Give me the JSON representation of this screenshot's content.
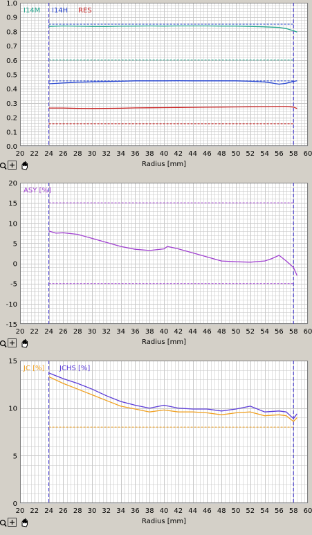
{
  "colors": {
    "panel_bg": "#d4d0c8",
    "plot_bg": "#ffffff",
    "grid": "#c8c8c8",
    "marker": "#3a2fd0",
    "i14m": "#20a58c",
    "i14h": "#1f3fcf",
    "res": "#c81e1e",
    "asy": "#a040d0",
    "jc": "#f0a020",
    "jchs": "#5a3ad8"
  },
  "toolbar_icons": [
    "magnifier-icon",
    "plus-icon",
    "hand-icon"
  ],
  "chart_data": [
    {
      "type": "line",
      "xlabel": "Radius [mm]",
      "ylabel": "",
      "xlim": [
        20,
        60
      ],
      "ylim": [
        0,
        1.0
      ],
      "x_ticks": [
        20,
        22,
        24,
        26,
        28,
        30,
        32,
        34,
        36,
        38,
        40,
        42,
        44,
        46,
        48,
        50,
        52,
        54,
        56,
        58,
        60
      ],
      "y_ticks": [
        "0.0",
        "0.1",
        "0.2",
        "0.3",
        "0.4",
        "0.5",
        "0.6",
        "0.7",
        "0.8",
        "0.9",
        "1.0"
      ],
      "grid": true,
      "legend_position": "top-left",
      "vertical_markers": [
        24,
        58
      ],
      "series": [
        {
          "name": "I14M",
          "color": "#20a58c",
          "x": [
            24,
            26,
            28,
            30,
            32,
            34,
            36,
            38,
            40,
            42,
            44,
            46,
            48,
            50,
            52,
            54,
            56,
            57,
            58,
            58.5
          ],
          "y": [
            0.835,
            0.838,
            0.836,
            0.835,
            0.834,
            0.836,
            0.837,
            0.838,
            0.837,
            0.838,
            0.838,
            0.838,
            0.837,
            0.837,
            0.835,
            0.832,
            0.828,
            0.82,
            0.805,
            0.795
          ]
        },
        {
          "name": "I14H",
          "color": "#1f3fcf",
          "x": [
            24,
            26,
            28,
            30,
            32,
            34,
            36,
            38,
            40,
            42,
            44,
            46,
            48,
            50,
            52,
            54,
            55,
            56,
            57,
            58,
            58.5
          ],
          "y": [
            0.435,
            0.44,
            0.445,
            0.448,
            0.45,
            0.452,
            0.455,
            0.455,
            0.455,
            0.456,
            0.455,
            0.455,
            0.455,
            0.455,
            0.452,
            0.447,
            0.44,
            0.432,
            0.438,
            0.45,
            0.456
          ]
        },
        {
          "name": "RES",
          "color": "#c81e1e",
          "x": [
            24,
            26,
            28,
            30,
            32,
            34,
            36,
            38,
            40,
            42,
            44,
            46,
            48,
            50,
            52,
            54,
            56,
            57,
            58,
            58.5
          ],
          "y": [
            0.265,
            0.265,
            0.263,
            0.262,
            0.263,
            0.264,
            0.266,
            0.267,
            0.268,
            0.269,
            0.27,
            0.271,
            0.272,
            0.273,
            0.274,
            0.275,
            0.276,
            0.276,
            0.272,
            0.262
          ]
        }
      ],
      "dashed_lines": [
        {
          "y": 0.85,
          "color": "#1f3fcf"
        },
        {
          "y": 0.6,
          "color": "#20a58c"
        },
        {
          "y": 0.455,
          "color": "#1f3fcf"
        },
        {
          "y": 0.155,
          "color": "#c81e1e"
        }
      ]
    },
    {
      "type": "line",
      "xlabel": "Radius [mm]",
      "ylabel": "",
      "xlim": [
        20,
        60
      ],
      "ylim": [
        -15,
        20
      ],
      "x_ticks": [
        20,
        22,
        24,
        26,
        28,
        30,
        32,
        34,
        36,
        38,
        40,
        42,
        44,
        46,
        48,
        50,
        52,
        54,
        56,
        58,
        60
      ],
      "y_ticks": [
        "-15",
        "-10",
        "-5",
        "0",
        "5",
        "10",
        "15",
        "20"
      ],
      "grid": true,
      "legend_position": "top-left",
      "vertical_markers": [
        24,
        58
      ],
      "series": [
        {
          "name": "ASY [%]",
          "color": "#a040d0",
          "x": [
            24,
            25,
            26,
            28,
            30,
            32,
            34,
            36,
            38,
            40,
            40.5,
            42,
            44,
            46,
            48,
            50,
            52,
            54,
            55,
            56,
            57,
            58,
            58.5
          ],
          "y": [
            8.0,
            7.5,
            7.6,
            7.2,
            6.2,
            5.2,
            4.2,
            3.5,
            3.2,
            3.6,
            4.2,
            3.6,
            2.6,
            1.6,
            0.6,
            0.4,
            0.3,
            0.6,
            1.2,
            2.0,
            0.6,
            -1.0,
            -3.0
          ]
        }
      ],
      "dashed_lines": [
        {
          "y": 15,
          "color": "#a040d0"
        },
        {
          "y": -5,
          "color": "#a040d0"
        }
      ]
    },
    {
      "type": "line",
      "xlabel": "Radius [mm]",
      "ylabel": "",
      "xlim": [
        20,
        60
      ],
      "ylim": [
        0,
        15
      ],
      "x_ticks": [
        20,
        22,
        24,
        26,
        28,
        30,
        32,
        34,
        36,
        38,
        40,
        42,
        44,
        46,
        48,
        50,
        52,
        54,
        56,
        58,
        60
      ],
      "y_ticks": [
        "0",
        "5",
        "10",
        "15"
      ],
      "grid": true,
      "legend_position": "top-left",
      "vertical_markers": [
        24,
        58
      ],
      "series": [
        {
          "name": "JC [%]",
          "color": "#f0a020",
          "x": [
            24,
            26,
            28,
            30,
            32,
            34,
            36,
            38,
            40,
            42,
            44,
            46,
            48,
            50,
            52,
            54,
            56,
            57,
            58,
            58.5
          ],
          "y": [
            13.3,
            12.6,
            12.0,
            11.4,
            10.8,
            10.2,
            9.9,
            9.6,
            9.8,
            9.6,
            9.6,
            9.5,
            9.3,
            9.5,
            9.6,
            9.2,
            9.3,
            9.2,
            8.6,
            9.0
          ]
        },
        {
          "name": "JCHS [%]",
          "color": "#5a3ad8",
          "x": [
            24,
            26,
            28,
            30,
            32,
            34,
            36,
            38,
            40,
            42,
            44,
            46,
            48,
            50,
            52,
            54,
            56,
            57,
            58,
            58.5
          ],
          "y": [
            13.7,
            13.1,
            12.6,
            12.0,
            11.3,
            10.7,
            10.3,
            10.0,
            10.3,
            10.0,
            9.9,
            9.9,
            9.7,
            9.9,
            10.2,
            9.6,
            9.7,
            9.6,
            8.9,
            9.4
          ]
        }
      ],
      "dashed_lines": [
        {
          "y": 8.0,
          "color": "#f0a020"
        }
      ]
    }
  ]
}
